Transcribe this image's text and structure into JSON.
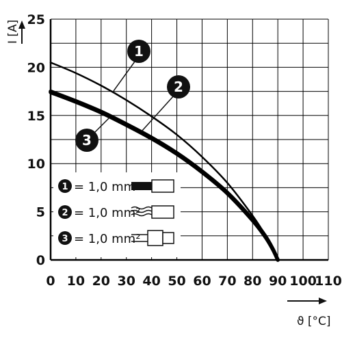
{
  "chart_data": {
    "type": "line",
    "xlabel": "ϑ [°C]",
    "ylabel": "I [A]",
    "xlim": [
      0,
      110
    ],
    "ylim": [
      0,
      25
    ],
    "x_ticks": [
      "0",
      "10",
      "20",
      "30",
      "40",
      "50",
      "60",
      "70",
      "80",
      "90",
      "100",
      "110"
    ],
    "y_ticks": [
      "0",
      "5",
      "10",
      "15",
      "20",
      "25"
    ],
    "grid": true,
    "legend_position": "bottom-left",
    "series": [
      {
        "name": "1,0 mm²",
        "marker": "1",
        "x": [
          0,
          10,
          20,
          30,
          40,
          50,
          60,
          70,
          80,
          85,
          88,
          90
        ],
        "y": [
          20.5,
          19.4,
          18.1,
          16.6,
          14.9,
          13.0,
          10.7,
          8.0,
          4.6,
          2.6,
          1.2,
          0
        ]
      },
      {
        "name": "1,0 mm²",
        "marker": "2",
        "x": [
          0,
          10,
          20,
          30,
          40,
          50,
          60,
          70,
          80,
          85,
          88,
          90
        ],
        "y": [
          17.4,
          16.4,
          15.3,
          14.0,
          12.6,
          11.0,
          9.1,
          6.9,
          4.1,
          2.4,
          1.1,
          0
        ]
      },
      {
        "name": "1,0 mm²",
        "marker": "3",
        "x": [
          0,
          10,
          20,
          30,
          40,
          50,
          60,
          70,
          80,
          85,
          88,
          90
        ],
        "y": [
          17.5,
          16.5,
          15.4,
          14.1,
          12.7,
          11.1,
          9.2,
          7.0,
          4.2,
          2.5,
          1.15,
          0
        ]
      }
    ],
    "callouts": [
      "1",
      "2",
      "3"
    ],
    "legend": [
      {
        "marker": "1",
        "label": "= 1,0 mm²",
        "icon": "solid-conductor-icon"
      },
      {
        "marker": "2",
        "label": "= 1,0 mm²",
        "icon": "stranded-conductor-icon"
      },
      {
        "marker": "3",
        "label": "= 1,0 mm²",
        "icon": "ferrule-conductor-icon"
      }
    ],
    "colors": {
      "line": "#000000",
      "grid": "#000000",
      "badge": "#111111"
    }
  }
}
